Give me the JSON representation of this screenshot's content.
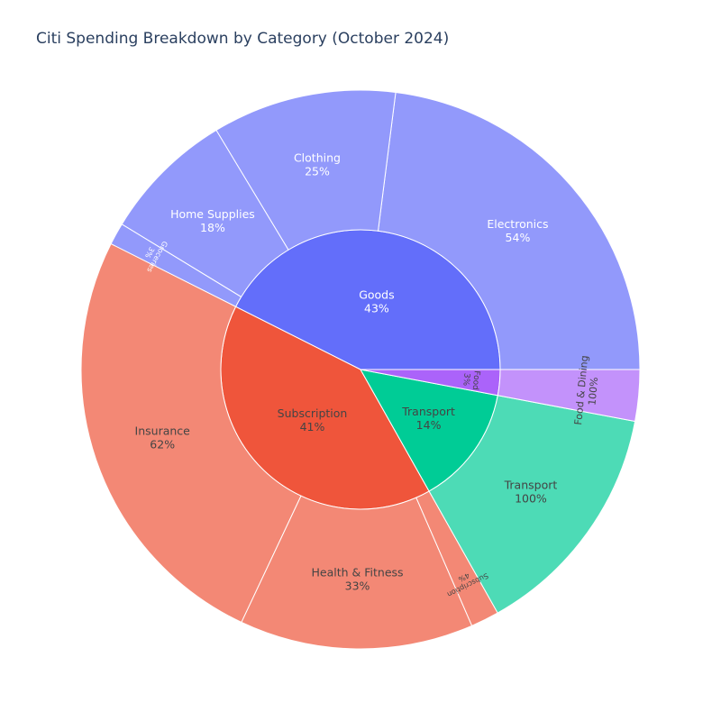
{
  "chart_data": {
    "type": "sunburst",
    "title": "Citi Spending Breakdown by Category (October 2024)",
    "inner_ring": [
      {
        "name": "Goods",
        "percent": 43,
        "label": "Goods",
        "pct_label": "43%",
        "color": "#636efa",
        "text_color": "#ffffff"
      },
      {
        "name": "Subscription",
        "percent": 41,
        "label": "Subscription",
        "pct_label": "41%",
        "color": "#ef553b",
        "text_color": "#444444"
      },
      {
        "name": "Transport",
        "percent": 14,
        "label": "Transport",
        "pct_label": "14%",
        "color": "#00cc96",
        "text_color": "#444444"
      },
      {
        "name": "Food",
        "percent": 3,
        "label": "Food",
        "pct_label": "3%",
        "color": "#ab63fa",
        "text_color": "#444444"
      }
    ],
    "outer_ring": [
      {
        "parent": "Goods",
        "name": "Electronics",
        "percent_of_parent": 54,
        "label": "Electronics",
        "pct_label": "54%"
      },
      {
        "parent": "Goods",
        "name": "Clothing",
        "percent_of_parent": 25,
        "label": "Clothing",
        "pct_label": "25%"
      },
      {
        "parent": "Goods",
        "name": "Home Supplies",
        "percent_of_parent": 18,
        "label": "Home Supplies",
        "pct_label": "18%"
      },
      {
        "parent": "Goods",
        "name": "Groceries",
        "percent_of_parent": 3,
        "label": "Groceries",
        "pct_label": "3%"
      },
      {
        "parent": "Subscription",
        "name": "Insurance",
        "percent_of_parent": 62,
        "label": "Insurance",
        "pct_label": "62%"
      },
      {
        "parent": "Subscription",
        "name": "Health & Fitness",
        "percent_of_parent": 33,
        "label": "Health & Fitness",
        "pct_label": "33%"
      },
      {
        "parent": "Subscription",
        "name": "Subscription",
        "percent_of_parent": 4,
        "label": "Subscription",
        "pct_label": "4%"
      },
      {
        "parent": "Transport",
        "name": "Transport",
        "percent_of_parent": 100,
        "label": "Transport",
        "pct_label": "100%"
      },
      {
        "parent": "Food",
        "name": "Food & Dining",
        "percent_of_parent": 100,
        "label": "Food & Dining",
        "pct_label": "100%"
      }
    ],
    "outer_colors": {
      "Goods": "#9299fb",
      "Subscription": "#f38875",
      "Transport": "#4ddbb6",
      "Food": "#c392fb"
    }
  }
}
